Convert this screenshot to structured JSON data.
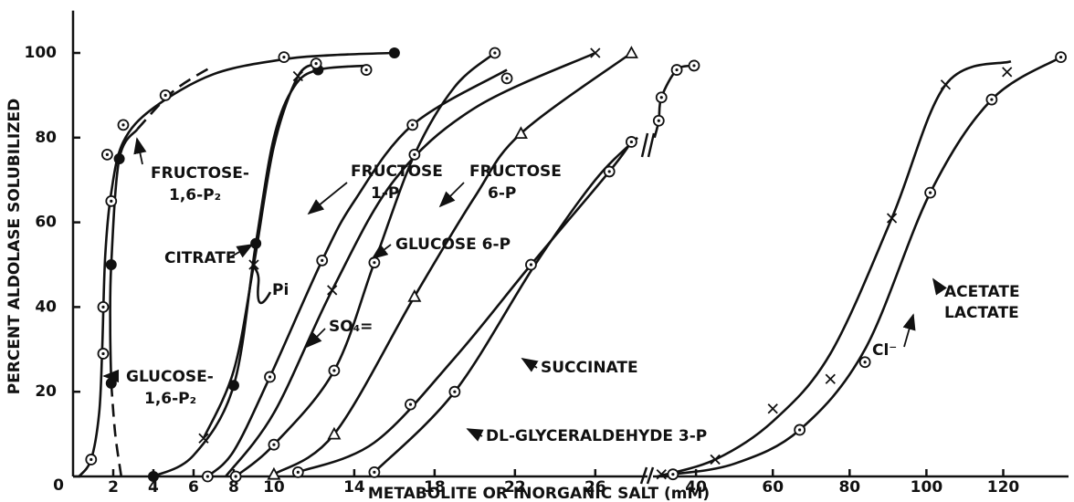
{
  "chart_data": {
    "type": "scatter",
    "ylabel": "PERCENT ALDOLASE SOLUBILIZED",
    "xlabel": "METABOLITE OR INORGANIC SALT (mM)",
    "ylim": [
      0,
      110
    ],
    "yticks": [
      0,
      20,
      40,
      60,
      80,
      100
    ],
    "x_segments": [
      {
        "xlim": [
          0,
          28.6
        ],
        "xticks": [
          2,
          4,
          6,
          8,
          10,
          14,
          18,
          22,
          26
        ]
      },
      {
        "xlim": [
          28.8,
          137
        ],
        "xticks": [
          40,
          60,
          80,
          100,
          120
        ]
      }
    ],
    "series": [
      {
        "marker": "dot-circle",
        "segment": 0,
        "x": [
          0.9,
          1.5,
          1.5,
          1.9,
          1.7,
          2.5,
          4.6,
          10.5,
          14.6
        ],
        "y": [
          4,
          29,
          40,
          65,
          76,
          83,
          90,
          99,
          96
        ]
      },
      {
        "marker": "filled",
        "segment": 0,
        "x": [
          1.9,
          1.9,
          2.3,
          4,
          8,
          9.1,
          12.2,
          16
        ],
        "y": [
          22,
          50,
          75,
          0,
          21.5,
          55,
          96,
          100
        ]
      },
      {
        "marker": "x",
        "segment": 0,
        "x": [
          6.5,
          9,
          11.2,
          12.9,
          26
        ],
        "y": [
          9,
          50,
          94.5,
          44,
          100
        ]
      },
      {
        "marker": "dot-circle",
        "segment": 0,
        "x": [
          6.7,
          9.8,
          12.4,
          16.9,
          21.6,
          12.1
        ],
        "y": [
          0,
          23.5,
          51,
          83,
          94,
          97.5
        ]
      },
      {
        "marker": "triangle",
        "segment": 0,
        "x": [
          10,
          13,
          17,
          22.3,
          27.8
        ],
        "y": [
          0.5,
          10,
          42.5,
          81,
          100
        ]
      },
      {
        "marker": "dot-circle",
        "segment": 0,
        "x": [
          8.1,
          10,
          13,
          15,
          17,
          21
        ],
        "y": [
          0,
          7.5,
          25,
          50.5,
          76,
          100
        ]
      },
      {
        "marker": "dot-circle",
        "segment": 0,
        "x": [
          11.2,
          16.8,
          22.8,
          26.7,
          27.8,
          15,
          19
        ],
        "y": [
          1,
          17,
          50,
          72,
          79,
          1,
          20
        ]
      },
      {
        "marker": "dot-circle",
        "segment": 1,
        "x": [
          30.3,
          31,
          35,
          39.5,
          34,
          67,
          84,
          101,
          117,
          135
        ],
        "y": [
          84,
          89.5,
          96,
          97,
          0.5,
          11,
          27,
          67,
          89,
          99
        ]
      },
      {
        "marker": "x",
        "segment": 1,
        "x": [
          31,
          45,
          60,
          75,
          91,
          105,
          121
        ],
        "y": [
          0.5,
          4,
          16,
          23,
          61,
          92.5,
          95.5
        ]
      }
    ],
    "curves": [
      {
        "segment": 0,
        "dashed": false,
        "x": [
          0.3,
          0.9,
          1.3,
          1.45,
          1.6,
          1.9,
          2.5,
          4,
          7,
          10.5,
          13,
          16
        ],
        "y": [
          0,
          4,
          15,
          30,
          52,
          67,
          79,
          87,
          95,
          98.5,
          99.5,
          100
        ]
      },
      {
        "segment": 0,
        "dashed": false,
        "x": [
          1.9,
          1.85,
          1.9,
          2.3,
          3.2
        ],
        "y": [
          22,
          35,
          50,
          75,
          82
        ]
      },
      {
        "segment": 0,
        "dashed": true,
        "x": [
          2.4,
          2.1,
          1.9
        ],
        "y": [
          0,
          10,
          22
        ]
      },
      {
        "segment": 0,
        "dashed": true,
        "x": [
          3.2,
          5,
          7
        ],
        "y": [
          82,
          91,
          97
        ]
      },
      {
        "segment": 0,
        "dashed": false,
        "x": [
          4,
          6,
          8,
          9.1,
          10,
          11,
          12.2,
          14.6
        ],
        "y": [
          0,
          5,
          21.5,
          55,
          80,
          92,
          96,
          97
        ]
      },
      {
        "segment": 0,
        "dashed": false,
        "x": [
          6.5,
          8,
          9,
          10,
          11.2,
          12.2
        ],
        "y": [
          9,
          25,
          50,
          78,
          94.5,
          97.5
        ]
      },
      {
        "segment": 0,
        "dashed": false,
        "x": [
          6.7,
          8,
          9.8,
          12.4,
          14,
          16.9,
          21.6
        ],
        "y": [
          0,
          6,
          23.5,
          51,
          65,
          83,
          96
        ]
      },
      {
        "segment": 0,
        "dashed": false,
        "x": [
          7.6,
          10,
          12.9,
          16,
          20,
          26
        ],
        "y": [
          0,
          15,
          44,
          70,
          87,
          100
        ]
      },
      {
        "segment": 0,
        "dashed": false,
        "x": [
          10,
          13,
          17,
          20,
          22.3,
          27.8
        ],
        "y": [
          0.5,
          10,
          42.5,
          66,
          81,
          100
        ]
      },
      {
        "segment": 0,
        "dashed": false,
        "x": [
          8.1,
          10,
          13,
          15,
          17,
          19,
          21
        ],
        "y": [
          0,
          7.5,
          25,
          50.5,
          76,
          92,
          100
        ]
      },
      {
        "segment": 0,
        "dashed": false,
        "x": [
          11.2,
          15,
          19,
          22.8,
          26.7,
          27.8
        ],
        "y": [
          1,
          8,
          28,
          50,
          72,
          79
        ]
      },
      {
        "segment": 0,
        "dashed": false,
        "x": [
          15,
          19,
          23,
          26,
          28.1
        ],
        "y": [
          1,
          20,
          50,
          70,
          80
        ]
      },
      {
        "segment": 1,
        "dashed": false,
        "x": [
          29.2,
          30.3,
          31,
          35,
          39.5
        ],
        "y": [
          80,
          84,
          89.5,
          96,
          97
        ]
      },
      {
        "segment": 1,
        "dashed": false,
        "x": [
          30,
          45,
          60,
          75,
          91,
          105,
          122
        ],
        "y": [
          0,
          4,
          13,
          29,
          61,
          92.5,
          98
        ]
      },
      {
        "segment": 1,
        "dashed": false,
        "x": [
          34,
          50,
          67,
          84,
          101,
          117,
          135
        ],
        "y": [
          0.5,
          3,
          11,
          30,
          67,
          89,
          99
        ]
      }
    ],
    "annotations": [
      "FRUCTOSE-",
      "1,6-P₂",
      "CITRATE",
      "Pi",
      "GLUCOSE-",
      "1,6-P₂",
      "FRUCTOSE",
      "1-P",
      "FRUCTOSE",
      "6-P",
      "GLUCOSE 6-P",
      "SO₄=",
      "SUCCINATE",
      "DL-GLYCERALDEHYDE 3-P",
      "Cl⁻",
      "ACETATE",
      "LACTATE"
    ]
  }
}
